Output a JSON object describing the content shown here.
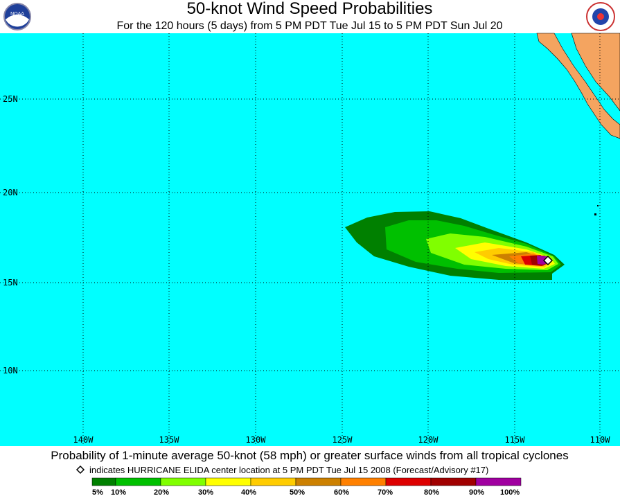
{
  "header": {
    "title": "50-knot Wind Speed Probabilities",
    "subtitle": "For the 120 hours (5 days) from 5 PM PDT Tue Jul 15 to 5 PM PDT Sun Jul 20"
  },
  "map": {
    "latitude_labels": [
      "25N",
      "20N",
      "15N",
      "10N"
    ],
    "longitude_labels": [
      "140W",
      "135W",
      "130W",
      "125W",
      "120W",
      "115W",
      "110W"
    ]
  },
  "footer": {
    "caption": "Probability of 1-minute average 50-knot (58 mph) or greater surface winds from all tropical cyclones",
    "note": "indicates HURRICANE ELIDA center location at 5 PM PDT Tue Jul 15 2008 (Forecast/Advisory #17)"
  },
  "legend": {
    "labels": [
      "5%",
      "10%",
      "20%",
      "30%",
      "40%",
      "50%",
      "60%",
      "70%",
      "80%",
      "90%",
      "100%"
    ]
  }
}
